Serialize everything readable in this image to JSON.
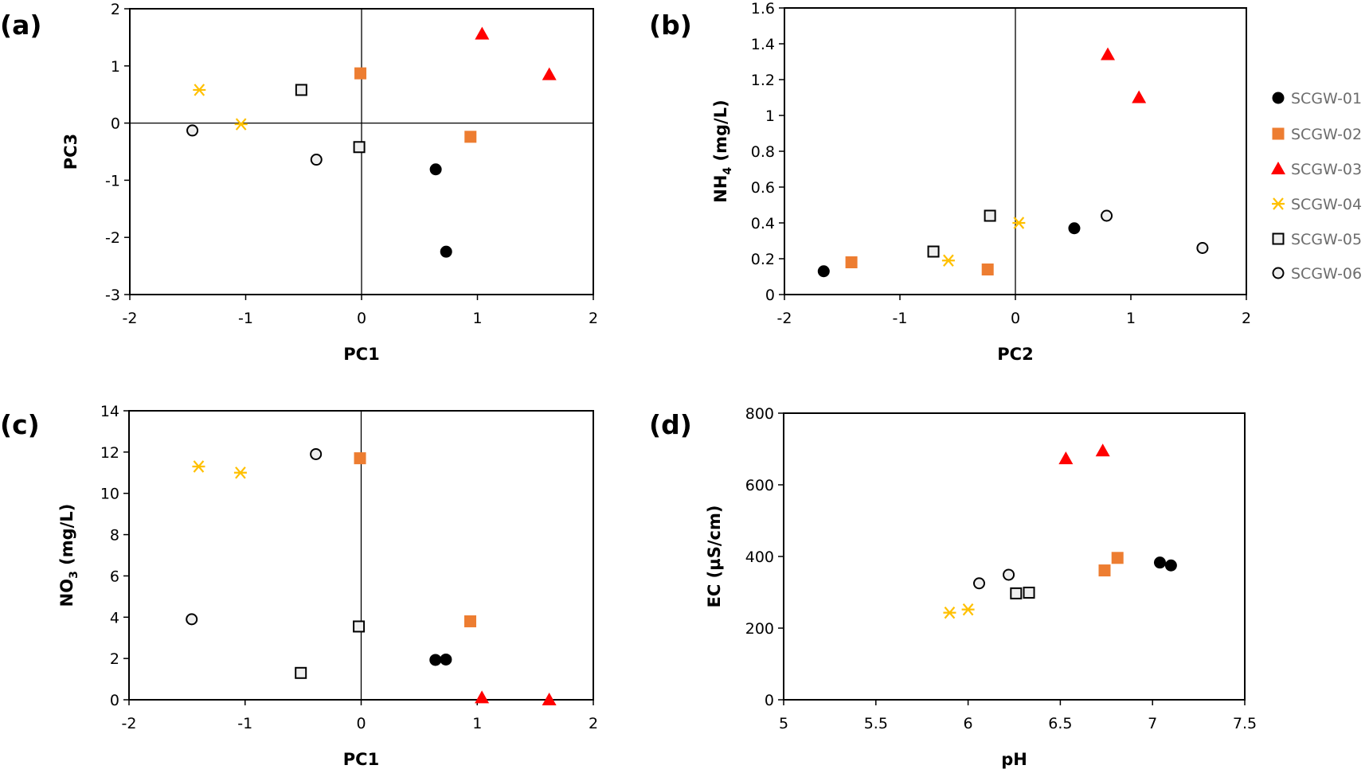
{
  "series_styles": [
    {
      "name": "SCGW-01",
      "marker": "circle-filled",
      "color": "#000000"
    },
    {
      "name": "SCGW-02",
      "marker": "square-filled",
      "color": "#ED7D31"
    },
    {
      "name": "SCGW-03",
      "marker": "triangle-filled",
      "color": "#FF0000"
    },
    {
      "name": "SCGW-04",
      "marker": "asterisk",
      "color": "#FFC000"
    },
    {
      "name": "SCGW-05",
      "marker": "square-open",
      "color": "#000000"
    },
    {
      "name": "SCGW-06",
      "marker": "circle-open",
      "color": "#000000"
    }
  ],
  "legend": {
    "placement": "right",
    "items": [
      "SCGW-01",
      "SCGW-02",
      "SCGW-03",
      "SCGW-04",
      "SCGW-05",
      "SCGW-06"
    ]
  },
  "chart_data": [
    {
      "panel": "(a)",
      "type": "scatter",
      "title": "",
      "xlabel": "PC1",
      "ylabel": "PC3",
      "xlim": [
        -2,
        2
      ],
      "ylim": [
        -3,
        2
      ],
      "xticks": [
        "-2",
        "-1",
        "0",
        "1",
        "2"
      ],
      "yticks": [
        "-3",
        "-2",
        "-1",
        "0",
        "1",
        "2"
      ],
      "xticks_values": [
        -2,
        -1,
        0,
        1,
        2
      ],
      "yticks_values": [
        -3,
        -2,
        -1,
        0,
        1,
        2
      ],
      "zero_lines": true,
      "grid": false,
      "series": [
        {
          "name": "SCGW-01",
          "points": [
            [
              0.64,
              -0.81
            ],
            [
              0.73,
              -2.25
            ]
          ]
        },
        {
          "name": "SCGW-02",
          "points": [
            [
              -0.01,
              0.87
            ],
            [
              0.94,
              -0.24
            ]
          ]
        },
        {
          "name": "SCGW-03",
          "points": [
            [
              1.04,
              1.56
            ],
            [
              1.62,
              0.85
            ]
          ]
        },
        {
          "name": "SCGW-04",
          "points": [
            [
              -1.4,
              0.58
            ],
            [
              -1.04,
              -0.02
            ]
          ]
        },
        {
          "name": "SCGW-05",
          "points": [
            [
              -0.52,
              0.58
            ],
            [
              -0.02,
              -0.42
            ]
          ]
        },
        {
          "name": "SCGW-06",
          "points": [
            [
              -1.46,
              -0.13
            ],
            [
              -0.39,
              -0.64
            ]
          ]
        }
      ]
    },
    {
      "panel": "(b)",
      "type": "scatter",
      "title": "",
      "xlabel": "PC2",
      "ylabel": "NH",
      "ylabel_sub": "4",
      "ylabel_unit": " (mg/L)",
      "xlim": [
        -2,
        2
      ],
      "ylim": [
        0,
        1.6
      ],
      "xticks": [
        "-2",
        "-1",
        "0",
        "1",
        "2"
      ],
      "yticks": [
        "0",
        "0.2",
        "0.4",
        "0.6",
        "0.8",
        "1",
        "1.2",
        "1.4",
        "1.6"
      ],
      "xticks_values": [
        -2,
        -1,
        0,
        1,
        2
      ],
      "yticks_values": [
        0,
        0.2,
        0.4,
        0.6,
        0.8,
        1,
        1.2,
        1.4,
        1.6
      ],
      "zero_lines": true,
      "grid": false,
      "series": [
        {
          "name": "SCGW-01",
          "points": [
            [
              -1.66,
              0.13
            ],
            [
              0.51,
              0.37
            ]
          ]
        },
        {
          "name": "SCGW-02",
          "points": [
            [
              -1.42,
              0.18
            ],
            [
              -0.24,
              0.14
            ]
          ]
        },
        {
          "name": "SCGW-03",
          "points": [
            [
              0.8,
              1.34
            ],
            [
              1.07,
              1.1
            ]
          ]
        },
        {
          "name": "SCGW-04",
          "points": [
            [
              -0.58,
              0.19
            ],
            [
              0.03,
              0.4
            ]
          ]
        },
        {
          "name": "SCGW-05",
          "points": [
            [
              -0.71,
              0.24
            ],
            [
              -0.22,
              0.44
            ]
          ]
        },
        {
          "name": "SCGW-06",
          "points": [
            [
              0.79,
              0.44
            ],
            [
              1.62,
              0.26
            ]
          ]
        }
      ]
    },
    {
      "panel": "(c)",
      "type": "scatter",
      "title": "",
      "xlabel": "PC1",
      "ylabel": "NO",
      "ylabel_sub": "3",
      "ylabel_unit": " (mg/L)",
      "xlim": [
        -2,
        2
      ],
      "ylim": [
        0,
        14
      ],
      "xticks": [
        "-2",
        "-1",
        "0",
        "1",
        "2"
      ],
      "yticks": [
        "0",
        "2",
        "4",
        "6",
        "8",
        "10",
        "12",
        "14"
      ],
      "xticks_values": [
        -2,
        -1,
        0,
        1,
        2
      ],
      "yticks_values": [
        0,
        2,
        4,
        6,
        8,
        10,
        12,
        14
      ],
      "zero_lines": true,
      "grid": false,
      "series": [
        {
          "name": "SCGW-01",
          "points": [
            [
              0.64,
              1.93
            ],
            [
              0.73,
              1.95
            ]
          ]
        },
        {
          "name": "SCGW-02",
          "points": [
            [
              -0.01,
              11.7
            ],
            [
              0.94,
              3.8
            ]
          ]
        },
        {
          "name": "SCGW-03",
          "points": [
            [
              1.04,
              0.1
            ],
            [
              1.62,
              0.0
            ]
          ]
        },
        {
          "name": "SCGW-04",
          "points": [
            [
              -1.4,
              11.3
            ],
            [
              -1.04,
              11.0
            ]
          ]
        },
        {
          "name": "SCGW-05",
          "points": [
            [
              -0.52,
              1.3
            ],
            [
              -0.02,
              3.55
            ]
          ]
        },
        {
          "name": "SCGW-06",
          "points": [
            [
              -1.46,
              3.9
            ],
            [
              -0.39,
              11.9
            ]
          ]
        }
      ]
    },
    {
      "panel": "(d)",
      "type": "scatter",
      "title": "",
      "xlabel": "pH",
      "ylabel": "EC (µS/cm)",
      "xlim": [
        5,
        7.5
      ],
      "ylim": [
        0,
        800
      ],
      "xticks": [
        "5",
        "5.5",
        "6",
        "6.5",
        "7",
        "7.5"
      ],
      "yticks": [
        "0",
        "200",
        "400",
        "600",
        "800"
      ],
      "xticks_values": [
        5,
        5.5,
        6,
        6.5,
        7,
        7.5
      ],
      "yticks_values": [
        0,
        200,
        400,
        600,
        800
      ],
      "zero_lines": false,
      "grid": false,
      "series": [
        {
          "name": "SCGW-01",
          "points": [
            [
              7.04,
              383
            ],
            [
              7.1,
              375
            ]
          ]
        },
        {
          "name": "SCGW-02",
          "points": [
            [
              6.74,
              361
            ],
            [
              6.81,
              396
            ]
          ]
        },
        {
          "name": "SCGW-03",
          "points": [
            [
              6.53,
              673
            ],
            [
              6.73,
              695
            ]
          ]
        },
        {
          "name": "SCGW-04",
          "points": [
            [
              5.9,
              243
            ],
            [
              6.0,
              252
            ]
          ]
        },
        {
          "name": "SCGW-05",
          "points": [
            [
              6.26,
              297
            ],
            [
              6.33,
              299
            ]
          ]
        },
        {
          "name": "SCGW-06",
          "points": [
            [
              6.06,
              325
            ],
            [
              6.22,
              349
            ]
          ]
        }
      ]
    }
  ]
}
